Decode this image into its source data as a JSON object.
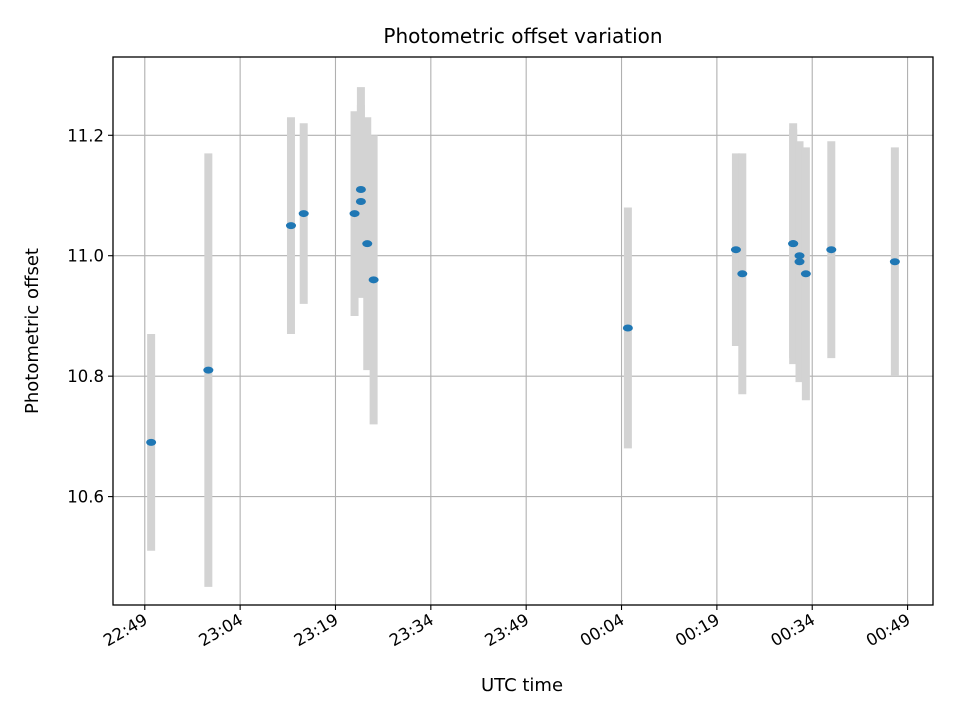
{
  "chart_data": {
    "type": "scatter",
    "title": "Photometric offset variation",
    "xlabel": "UTC time",
    "ylabel": "Photometric offset",
    "x_tick_labels": [
      "22:49",
      "23:04",
      "23:19",
      "23:34",
      "23:49",
      "00:04",
      "00:19",
      "00:34",
      "00:49"
    ],
    "y_ticks": [
      10.6,
      10.8,
      11.0,
      11.2
    ],
    "y_tick_labels": [
      "10.6",
      "10.8",
      "11.0",
      "11.2"
    ],
    "xlim": [
      "22:44",
      "00:53"
    ],
    "ylim": [
      10.42,
      11.33
    ],
    "grid": true,
    "errorbar_color": "#d3d3d3",
    "marker_color": "#1f77b4",
    "series": [
      {
        "points": [
          {
            "x": "22:50",
            "y": 10.69,
            "yerr": 0.18
          },
          {
            "x": "22:59",
            "y": 10.81,
            "yerr": 0.36
          },
          {
            "x": "23:12",
            "y": 11.05,
            "yerr": 0.18
          },
          {
            "x": "23:14",
            "y": 11.07,
            "yerr": 0.15
          },
          {
            "x": "23:22",
            "y": 11.07,
            "yerr": 0.17
          },
          {
            "x": "23:23",
            "y": 11.09,
            "yerr": 0.16
          },
          {
            "x": "23:23",
            "y": 11.11,
            "yerr": 0.17
          },
          {
            "x": "23:24",
            "y": 11.02,
            "yerr": 0.21
          },
          {
            "x": "23:25",
            "y": 10.96,
            "yerr": 0.24
          },
          {
            "x": "00:05",
            "y": 10.88,
            "yerr": 0.2
          },
          {
            "x": "00:22",
            "y": 11.01,
            "yerr": 0.16
          },
          {
            "x": "00:23",
            "y": 10.97,
            "yerr": 0.2
          },
          {
            "x": "00:31",
            "y": 11.02,
            "yerr": 0.2
          },
          {
            "x": "00:31",
            "y": 11.02,
            "yerr": 0.19
          },
          {
            "x": "00:32",
            "y": 11.0,
            "yerr": 0.18
          },
          {
            "x": "00:32",
            "y": 10.99,
            "yerr": 0.2
          },
          {
            "x": "00:33",
            "y": 10.97,
            "yerr": 0.21
          },
          {
            "x": "00:37",
            "y": 11.01,
            "yerr": 0.18
          },
          {
            "x": "00:47",
            "y": 10.99,
            "yerr": 0.19
          }
        ]
      }
    ]
  }
}
